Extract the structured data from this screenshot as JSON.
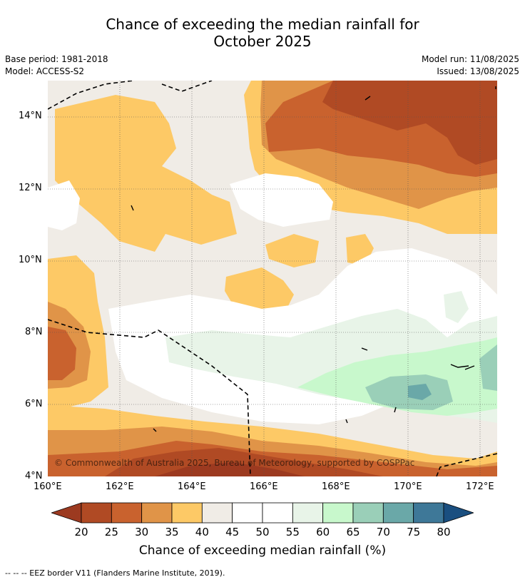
{
  "title_line1": "Chance of exceeding the median rainfall for",
  "title_line2": "October 2025",
  "base_period": "Base period: 1981-2018",
  "model": "Model: ACCESS-S2",
  "model_run": "Model run: 11/08/2025",
  "issued": "Issued: 13/08/2025",
  "copyright": "© Commonwealth of Australia 2025, Bureau of Meteorology, supported by COSPPac",
  "lat_labels": [
    "14°N",
    "12°N",
    "10°N",
    "8°N",
    "6°N",
    "4°N"
  ],
  "lon_labels": [
    "160°E",
    "162°E",
    "164°E",
    "166°E",
    "168°E",
    "170°E",
    "172°E"
  ],
  "colorbar": {
    "labels": [
      "20",
      "25",
      "30",
      "35",
      "40",
      "45",
      "50",
      "55",
      "60",
      "65",
      "70",
      "75",
      "80"
    ],
    "colors": [
      "#9c3a20",
      "#b04a24",
      "#c9622e",
      "#e09448",
      "#fdc966",
      "#f0ece6",
      "#ffffff",
      "#ffffff",
      "#e8f4e8",
      "#c8f8cc",
      "#9acfb8",
      "#6aa8a8",
      "#3e7898",
      "#1a4f80"
    ],
    "title": "Chance of exceeding median rainfall (%)"
  },
  "footnote": "--  --  -- EEZ border V11 (Flanders Marine Institute, 2019).",
  "map_icons": {
    "eez_border": "dashed-line"
  }
}
